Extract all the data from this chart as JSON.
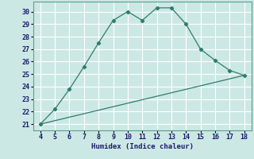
{
  "title": "",
  "xlabel": "Humidex (Indice chaleur)",
  "ylabel": "",
  "bg_color": "#cce8e4",
  "grid_color": "#ffffff",
  "line_color": "#2e7d6e",
  "xlim": [
    3.5,
    18.5
  ],
  "ylim": [
    20.5,
    30.8
  ],
  "xticks": [
    4,
    5,
    6,
    7,
    8,
    9,
    10,
    11,
    12,
    13,
    14,
    15,
    16,
    17,
    18
  ],
  "yticks": [
    21,
    22,
    23,
    24,
    25,
    26,
    27,
    28,
    29,
    30
  ],
  "curve_x": [
    4,
    5,
    6,
    7,
    8,
    9,
    10,
    11,
    12,
    13,
    14,
    15,
    16,
    17,
    18
  ],
  "curve_y": [
    21.0,
    22.2,
    23.8,
    25.6,
    27.5,
    29.3,
    30.0,
    29.3,
    30.3,
    30.3,
    29.0,
    27.0,
    26.1,
    25.3,
    24.9
  ],
  "line_x": [
    4,
    18
  ],
  "line_y": [
    21.0,
    24.9
  ]
}
